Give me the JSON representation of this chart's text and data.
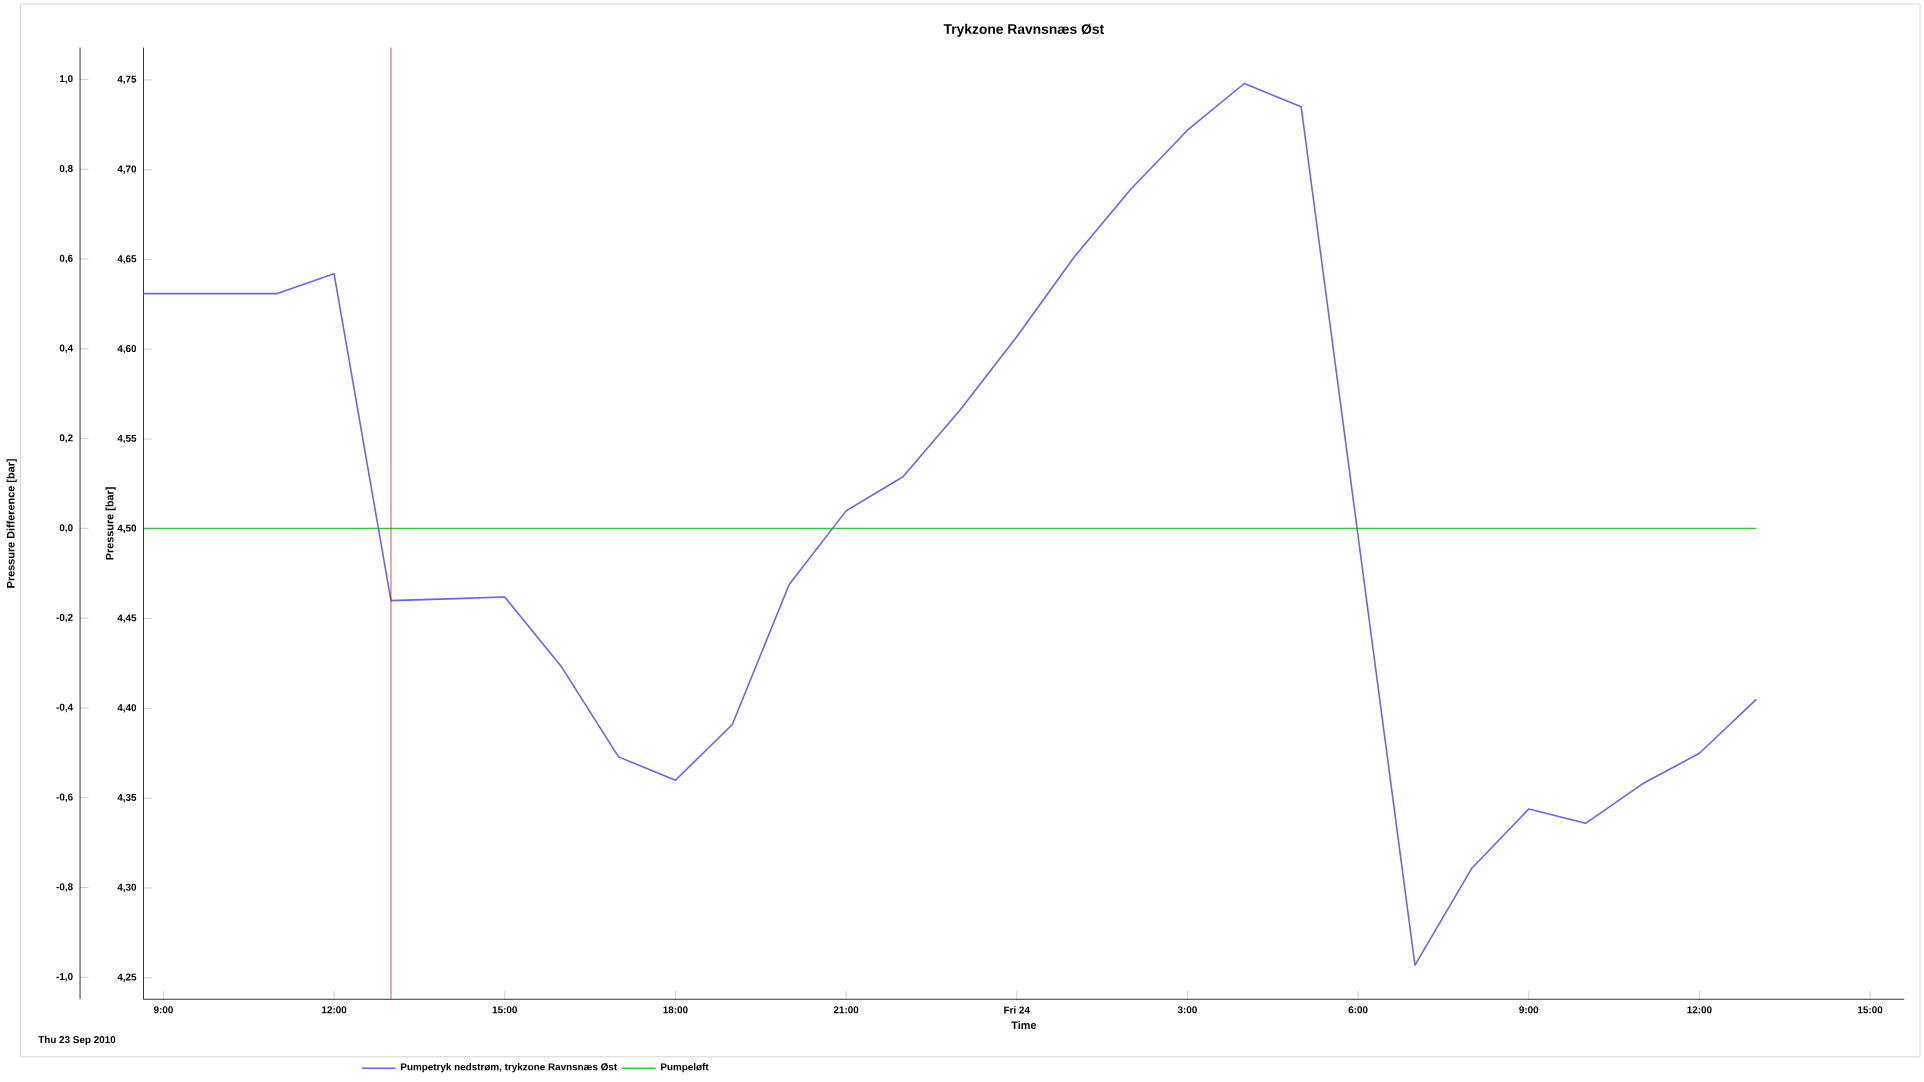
{
  "chart_data": {
    "type": "line",
    "title": "Trykzone Ravnsnæs Øst",
    "xlabel": "Time",
    "ylabel": "Pressure [bar]",
    "y2label": "Pressure Difference [bar]",
    "annotations": [
      "Thu 23 Sep 2010"
    ],
    "series": [
      {
        "name": "Pumpetryk nedstrøm, trykzone Ravnsnæs Øst",
        "color": "#6666ee",
        "x": [
          "2010-09-23T08:39",
          "2010-09-23T11:00",
          "2010-09-23T12:00",
          "2010-09-23T13:00",
          "2010-09-23T14:00",
          "2010-09-23T15:00",
          "2010-09-23T16:00",
          "2010-09-23T17:00",
          "2010-09-23T18:00",
          "2010-09-23T19:00",
          "2010-09-23T20:00",
          "2010-09-23T21:00",
          "2010-09-23T22:00",
          "2010-09-23T23:00",
          "2010-09-24T00:00",
          "2010-09-24T01:00",
          "2010-09-24T02:00",
          "2010-09-24T03:00",
          "2010-09-24T04:00",
          "2010-09-24T05:00",
          "2010-09-24T07:00",
          "2010-09-24T08:00",
          "2010-09-24T09:00",
          "2010-09-24T10:00",
          "2010-09-24T11:00",
          "2010-09-24T12:00",
          "2010-09-24T13:00"
        ],
        "values": [
          4.631,
          4.631,
          4.642,
          4.46,
          4.461,
          4.462,
          4.423,
          4.373,
          4.36,
          4.391,
          4.469,
          4.51,
          4.529,
          4.566,
          4.607,
          4.651,
          4.689,
          4.722,
          4.748,
          4.735,
          4.257,
          4.311,
          4.344,
          4.336,
          4.358,
          4.375,
          4.405
        ]
      },
      {
        "name": "Pumpeløft",
        "color": "#33cc33",
        "axis": "y2",
        "x": [
          "2010-09-23T08:39",
          "2010-09-24T13:00"
        ],
        "values": [
          0.0,
          0.0
        ]
      }
    ],
    "ref_lines": [
      {
        "axis": "x",
        "value": "2010-09-23T13:00",
        "color": "#b03030"
      }
    ],
    "xlim": [
      "2010-09-23T08:39",
      "2010-09-24T15:36"
    ],
    "xticks": [
      {
        "value": "2010-09-23T09:00",
        "label": "9:00"
      },
      {
        "value": "2010-09-23T12:00",
        "label": "12:00"
      },
      {
        "value": "2010-09-23T15:00",
        "label": "15:00"
      },
      {
        "value": "2010-09-23T18:00",
        "label": "18:00"
      },
      {
        "value": "2010-09-23T21:00",
        "label": "21:00"
      },
      {
        "value": "2010-09-24T00:00",
        "label": "Fri 24"
      },
      {
        "value": "2010-09-24T03:00",
        "label": "3:00"
      },
      {
        "value": "2010-09-24T06:00",
        "label": "6:00"
      },
      {
        "value": "2010-09-24T09:00",
        "label": "9:00"
      },
      {
        "value": "2010-09-24T12:00",
        "label": "12:00"
      },
      {
        "value": "2010-09-24T15:00",
        "label": "15:00"
      }
    ],
    "ylim": [
      4.238,
      4.768
    ],
    "yticks": [
      {
        "value": 4.25,
        "label": "4,25"
      },
      {
        "value": 4.3,
        "label": "4,30"
      },
      {
        "value": 4.35,
        "label": "4,35"
      },
      {
        "value": 4.4,
        "label": "4,40"
      },
      {
        "value": 4.45,
        "label": "4,45"
      },
      {
        "value": 4.5,
        "label": "4,50"
      },
      {
        "value": 4.55,
        "label": "4,55"
      },
      {
        "value": 4.6,
        "label": "4,60"
      },
      {
        "value": 4.65,
        "label": "4,65"
      },
      {
        "value": 4.7,
        "label": "4,70"
      },
      {
        "value": 4.75,
        "label": "4,75"
      }
    ],
    "y2lim": [
      -1.049,
      1.071
    ],
    "y2ticks": [
      {
        "value": -1.0,
        "label": "-1,0"
      },
      {
        "value": -0.8,
        "label": "-0,8"
      },
      {
        "value": -0.6,
        "label": "-0,6"
      },
      {
        "value": -0.4,
        "label": "-0,4"
      },
      {
        "value": -0.2,
        "label": "-0,2"
      },
      {
        "value": 0.0,
        "label": "0,0"
      },
      {
        "value": 0.2,
        "label": "0,2"
      },
      {
        "value": 0.4,
        "label": "0,4"
      },
      {
        "value": 0.6,
        "label": "0,6"
      },
      {
        "value": 0.8,
        "label": "0,8"
      },
      {
        "value": 1.0,
        "label": "1,0"
      }
    ],
    "grid": false,
    "legend": "bottom",
    "marker": "none",
    "line_style": "solid"
  }
}
